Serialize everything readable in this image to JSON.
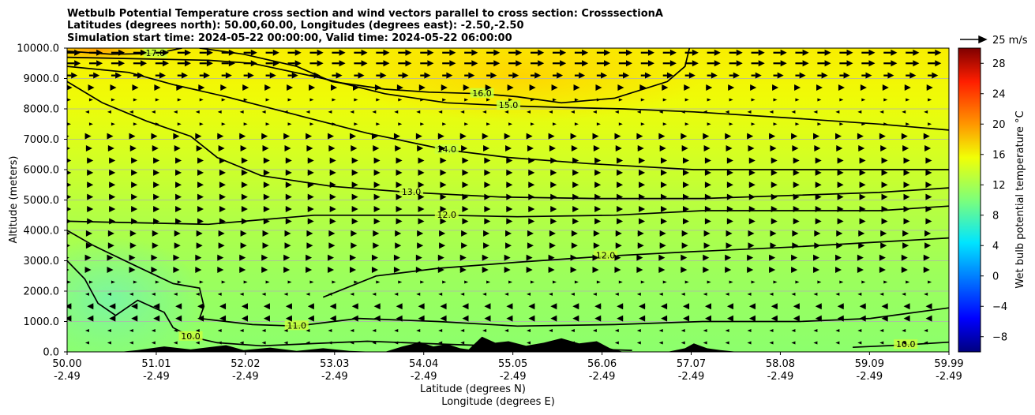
{
  "chart_data": {
    "type": "heatmap",
    "title_lines": [
      "Wetbulb Potential Temperature cross section and wind vectors parallel to cross section: CrosssectionA",
      "Latitudes (degrees north): 50.00,60.00, Longitudes (degrees east): -2.50,-2.50",
      "Simulation start time: 2024-05-22 00:00:00, Valid time: 2024-05-22 06:00:00"
    ],
    "xlabel_lat": "Latitude (degrees N)",
    "xlabel_lon": "Longitude (degrees E)",
    "ylabel": "Altitude (meters)",
    "x_range": [
      50.0,
      59.99
    ],
    "ylim": [
      0,
      10000
    ],
    "x_ticks": [
      {
        "lat": "50.00",
        "lon": "-2.49",
        "value": 50.0
      },
      {
        "lat": "51.01",
        "lon": "-2.49",
        "value": 51.01
      },
      {
        "lat": "52.02",
        "lon": "-2.49",
        "value": 52.02
      },
      {
        "lat": "53.03",
        "lon": "-2.49",
        "value": 53.03
      },
      {
        "lat": "54.04",
        "lon": "-2.49",
        "value": 54.04
      },
      {
        "lat": "55.05",
        "lon": "-2.49",
        "value": 55.05
      },
      {
        "lat": "56.06",
        "lon": "-2.49",
        "value": 56.06
      },
      {
        "lat": "57.07",
        "lon": "-2.49",
        "value": 57.07
      },
      {
        "lat": "58.08",
        "lon": "-2.49",
        "value": 58.08
      },
      {
        "lat": "59.09",
        "lon": "-2.49",
        "value": 59.09
      },
      {
        "lat": "59.99",
        "lon": "-2.49",
        "value": 59.99
      }
    ],
    "y_ticks": [
      {
        "label": "0.0",
        "value": 0
      },
      {
        "label": "1000.0",
        "value": 1000
      },
      {
        "label": "2000.0",
        "value": 2000
      },
      {
        "label": "3000.0",
        "value": 3000
      },
      {
        "label": "4000.0",
        "value": 4000
      },
      {
        "label": "5000.0",
        "value": 5000
      },
      {
        "label": "6000.0",
        "value": 6000
      },
      {
        "label": "7000.0",
        "value": 7000
      },
      {
        "label": "8000.0",
        "value": 8000
      },
      {
        "label": "9000.0",
        "value": 9000
      },
      {
        "label": "10000.0",
        "value": 10000
      }
    ],
    "colorbar": {
      "label": "Wet bulb potential temperature °C",
      "range": [
        -10,
        30
      ],
      "ticks": [
        {
          "label": "−8",
          "value": -8
        },
        {
          "label": "−4",
          "value": -4
        },
        {
          "label": "0",
          "value": 0
        },
        {
          "label": "4",
          "value": 4
        },
        {
          "label": "8",
          "value": 8
        },
        {
          "label": "12",
          "value": 12
        },
        {
          "label": "16",
          "value": 16
        },
        {
          "label": "20",
          "value": 20
        },
        {
          "label": "24",
          "value": 24
        },
        {
          "label": "28",
          "value": 28
        }
      ]
    },
    "quiver_key": {
      "label": "25 m/s",
      "speed": 25
    },
    "contours": [
      {
        "level": 10.0,
        "label": "10.0",
        "points": [
          [
            50.0,
            3000
          ],
          [
            50.2,
            2400
          ],
          [
            50.35,
            1600
          ],
          [
            50.55,
            1200
          ],
          [
            50.8,
            1700
          ],
          [
            51.1,
            1300
          ],
          [
            51.2,
            800
          ],
          [
            51.4,
            500
          ],
          [
            51.7,
            300
          ],
          [
            52.2,
            200
          ],
          [
            53.4,
            350
          ],
          [
            54.3,
            250
          ],
          [
            55.3,
            150
          ],
          [
            56.4,
            50
          ]
        ]
      },
      {
        "level": 10.0,
        "label": "10.0",
        "points": [
          [
            58.9,
            150
          ],
          [
            59.5,
            230
          ],
          [
            59.99,
            320
          ]
        ]
      },
      {
        "level": 11.0,
        "label": "11.0",
        "points": [
          [
            50.0,
            4000
          ],
          [
            50.3,
            3500
          ],
          [
            50.8,
            2800
          ],
          [
            51.2,
            2250
          ],
          [
            51.5,
            2100
          ],
          [
            51.55,
            1500
          ],
          [
            51.5,
            1100
          ],
          [
            52.1,
            900
          ],
          [
            52.6,
            850
          ],
          [
            53.3,
            1100
          ],
          [
            54.2,
            1000
          ],
          [
            55.1,
            850
          ],
          [
            56.2,
            900
          ],
          [
            57.2,
            1000
          ],
          [
            58.3,
            1000
          ],
          [
            59.1,
            1100
          ],
          [
            59.99,
            1450
          ]
        ]
      },
      {
        "level": 12.0,
        "label": "12.0",
        "points": [
          [
            50.0,
            4300
          ],
          [
            50.8,
            4250
          ],
          [
            51.6,
            4200
          ],
          [
            52.2,
            4350
          ],
          [
            52.8,
            4500
          ],
          [
            53.5,
            4500
          ],
          [
            54.3,
            4500
          ],
          [
            55.1,
            4450
          ],
          [
            56.2,
            4500
          ],
          [
            57.2,
            4650
          ],
          [
            58.3,
            4650
          ],
          [
            59.2,
            4650
          ],
          [
            59.99,
            4800
          ]
        ]
      },
      {
        "level": 12.0,
        "label": "12.0",
        "points": [
          [
            52.9,
            1800
          ],
          [
            53.5,
            2500
          ],
          [
            54.2,
            2750
          ],
          [
            55.1,
            2950
          ],
          [
            56.1,
            3150
          ],
          [
            57.1,
            3300
          ],
          [
            58.2,
            3450
          ],
          [
            59.1,
            3600
          ],
          [
            59.99,
            3750
          ]
        ]
      },
      {
        "level": 13.0,
        "label": "13.0",
        "points": [
          [
            50.0,
            8900
          ],
          [
            50.4,
            8200
          ],
          [
            50.9,
            7600
          ],
          [
            51.4,
            7100
          ],
          [
            51.7,
            6400
          ],
          [
            52.2,
            5800
          ],
          [
            53.0,
            5450
          ],
          [
            53.9,
            5250
          ],
          [
            54.9,
            5100
          ],
          [
            56.0,
            5050
          ],
          [
            57.2,
            5050
          ],
          [
            58.2,
            5150
          ],
          [
            59.2,
            5250
          ],
          [
            59.99,
            5400
          ]
        ]
      },
      {
        "level": 14.0,
        "label": "14.0",
        "points": [
          [
            50.0,
            9400
          ],
          [
            50.7,
            9200
          ],
          [
            51.2,
            8800
          ],
          [
            51.8,
            8400
          ],
          [
            52.6,
            7800
          ],
          [
            53.4,
            7200
          ],
          [
            54.3,
            6650
          ],
          [
            55.0,
            6400
          ],
          [
            55.9,
            6200
          ],
          [
            57.1,
            6000
          ],
          [
            58.2,
            6000
          ],
          [
            59.2,
            6000
          ],
          [
            59.99,
            6000
          ]
        ]
      },
      {
        "level": 15.0,
        "label": "15.0",
        "points": [
          [
            50.0,
            9700
          ],
          [
            50.8,
            9650
          ],
          [
            51.6,
            9600
          ],
          [
            52.1,
            9500
          ],
          [
            52.9,
            9000
          ],
          [
            53.6,
            8500
          ],
          [
            54.3,
            8200
          ],
          [
            55.0,
            8100
          ],
          [
            55.6,
            8050
          ],
          [
            56.3,
            8000
          ],
          [
            57.1,
            7900
          ],
          [
            58.2,
            7700
          ],
          [
            59.2,
            7500
          ],
          [
            59.99,
            7300
          ]
        ]
      },
      {
        "level": 16.0,
        "label": "16.0",
        "points": [
          [
            51.5,
            10000
          ],
          [
            52.0,
            9800
          ],
          [
            52.6,
            9400
          ],
          [
            53.0,
            8900
          ],
          [
            53.6,
            8650
          ],
          [
            54.1,
            8550
          ],
          [
            54.7,
            8500
          ],
          [
            55.1,
            8400
          ],
          [
            55.6,
            8200
          ],
          [
            56.2,
            8350
          ],
          [
            56.8,
            8900
          ],
          [
            57.0,
            9400
          ],
          [
            57.05,
            10000
          ]
        ]
      },
      {
        "level": 17.0,
        "label": "17.0",
        "points": [
          [
            50.0,
            9900
          ],
          [
            50.5,
            9800
          ],
          [
            51.0,
            9820
          ],
          [
            51.3,
            10000
          ]
        ]
      }
    ],
    "terrain": [
      [
        50.0,
        0
      ],
      [
        50.6,
        0
      ],
      [
        50.8,
        60
      ],
      [
        51.1,
        180
      ],
      [
        51.4,
        80
      ],
      [
        51.8,
        220
      ],
      [
        52.0,
        60
      ],
      [
        52.3,
        140
      ],
      [
        52.6,
        30
      ],
      [
        52.9,
        120
      ],
      [
        53.2,
        30
      ],
      [
        53.5,
        0
      ],
      [
        53.6,
        0
      ],
      [
        53.8,
        180
      ],
      [
        54.0,
        320
      ],
      [
        54.15,
        180
      ],
      [
        54.3,
        260
      ],
      [
        54.45,
        120
      ],
      [
        54.55,
        80
      ],
      [
        54.7,
        500
      ],
      [
        54.85,
        300
      ],
      [
        55.0,
        350
      ],
      [
        55.2,
        200
      ],
      [
        55.4,
        300
      ],
      [
        55.6,
        450
      ],
      [
        55.8,
        280
      ],
      [
        56.0,
        350
      ],
      [
        56.15,
        120
      ],
      [
        56.3,
        0
      ],
      [
        56.8,
        0
      ],
      [
        57.0,
        120
      ],
      [
        57.1,
        280
      ],
      [
        57.25,
        120
      ],
      [
        57.4,
        60
      ],
      [
        57.6,
        0
      ],
      [
        59.99,
        0
      ]
    ],
    "wind": {
      "x": [
        50.0,
        50.25,
        50.5,
        50.75,
        51.0,
        51.25,
        51.5,
        51.75,
        52.0,
        52.25,
        52.5,
        52.75,
        53.0,
        53.25,
        53.5,
        53.75,
        54.0,
        54.25,
        54.5,
        54.75,
        55.0,
        55.25,
        55.5,
        55.75,
        56.0,
        56.25,
        56.5,
        56.75,
        57.0,
        57.25,
        57.5,
        57.75,
        58.0,
        58.25,
        58.5,
        58.75,
        59.0,
        59.25,
        59.5,
        59.75
      ],
      "z": [
        300,
        700,
        1100,
        1500,
        1900,
        2300,
        2700,
        3100,
        3500,
        3900,
        4300,
        4700,
        5100,
        5500,
        5900,
        6300,
        6700,
        7100,
        7500,
        7900,
        8300,
        8700,
        9100,
        9500,
        9850
      ],
      "u_profile": [
        -1,
        -1,
        -2,
        -2,
        -1,
        1,
        2,
        2,
        3,
        3,
        4,
        4,
        4,
        4,
        4,
        4,
        3,
        2,
        1,
        -1,
        0,
        5,
        10,
        13,
        13
      ]
    }
  }
}
